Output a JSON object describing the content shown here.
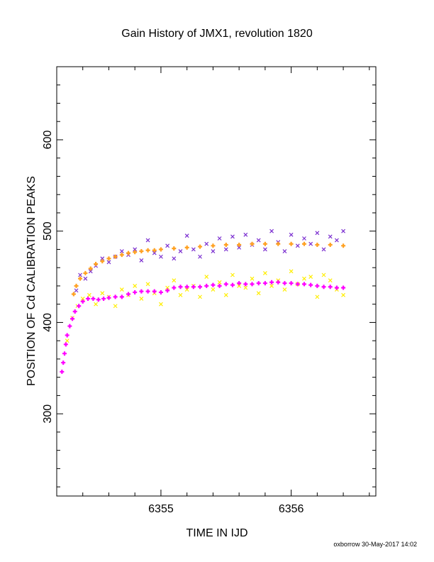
{
  "chart_data": {
    "type": "scatter",
    "title": "Gain History of JMX1, revolution 1820",
    "xlabel": "TIME IN IJD",
    "ylabel": "POSITION OF Cd CALIBRATION PEAKS",
    "xlim": [
      6354.2,
      6356.65
    ],
    "ylim": [
      210,
      680
    ],
    "xticks": [
      6355,
      6356
    ],
    "xtick_labels": [
      "6355",
      "6356"
    ],
    "yticks": [
      300,
      400,
      500,
      600
    ],
    "ytick_labels": [
      "300",
      "400",
      "500",
      "600"
    ],
    "grid": false,
    "series": [
      {
        "color": "#7b2fd0",
        "marker": "x",
        "x": [
          6354.35,
          6354.38,
          6354.42,
          6354.46,
          6354.5,
          6354.55,
          6354.6,
          6354.65,
          6354.7,
          6354.75,
          6354.8,
          6354.85,
          6354.9,
          6354.95,
          6355.0,
          6355.05,
          6355.1,
          6355.15,
          6355.2,
          6355.25,
          6355.3,
          6355.35,
          6355.4,
          6355.45,
          6355.5,
          6355.55,
          6355.6,
          6355.65,
          6355.7,
          6355.75,
          6355.8,
          6355.85,
          6355.9,
          6355.95,
          6356.0,
          6356.05,
          6356.1,
          6356.15,
          6356.2,
          6356.25,
          6356.3,
          6356.35,
          6356.4
        ],
        "y": [
          435,
          452,
          448,
          456,
          462,
          470,
          466,
          472,
          478,
          474,
          480,
          468,
          490,
          476,
          472,
          484,
          470,
          478,
          495,
          480,
          472,
          486,
          478,
          492,
          480,
          494,
          482,
          496,
          485,
          490,
          480,
          500,
          488,
          478,
          496,
          484,
          492,
          486,
          498,
          480,
          494,
          490,
          500
        ]
      },
      {
        "color": "#ffa020",
        "marker": "+",
        "x": [
          6354.33,
          6354.35,
          6354.38,
          6354.42,
          6354.46,
          6354.5,
          6354.55,
          6354.6,
          6354.65,
          6354.7,
          6354.75,
          6354.8,
          6354.85,
          6354.9,
          6354.95,
          6355.0,
          6355.1,
          6355.2,
          6355.3,
          6355.4,
          6355.5,
          6355.6,
          6355.7,
          6355.8,
          6355.9,
          6356.0,
          6356.1,
          6356.2,
          6356.3,
          6356.4
        ],
        "y": [
          431,
          440,
          448,
          454,
          459,
          464,
          467,
          470,
          472,
          474,
          476,
          477,
          478,
          479,
          479,
          480,
          481,
          482,
          483,
          484,
          485,
          485,
          486,
          486,
          486,
          486,
          486,
          485,
          485,
          484
        ]
      },
      {
        "color": "#ffee00",
        "marker": "x",
        "x": [
          6354.28,
          6354.32,
          6354.36,
          6354.4,
          6354.45,
          6354.5,
          6354.55,
          6354.6,
          6354.65,
          6354.7,
          6354.75,
          6354.8,
          6354.85,
          6354.9,
          6354.95,
          6355.0,
          6355.05,
          6355.1,
          6355.15,
          6355.2,
          6355.25,
          6355.3,
          6355.35,
          6355.4,
          6355.45,
          6355.5,
          6355.55,
          6355.6,
          6355.65,
          6355.7,
          6355.75,
          6355.8,
          6355.85,
          6355.9,
          6355.95,
          6356.0,
          6356.05,
          6356.1,
          6356.15,
          6356.2,
          6356.25,
          6356.3,
          6356.35,
          6356.4
        ],
        "y": [
          380,
          405,
          418,
          426,
          430,
          420,
          432,
          428,
          418,
          436,
          430,
          440,
          426,
          442,
          432,
          420,
          438,
          446,
          430,
          436,
          440,
          428,
          450,
          436,
          444,
          430,
          452,
          440,
          438,
          448,
          432,
          454,
          440,
          446,
          436,
          456,
          442,
          448,
          450,
          428,
          452,
          446,
          436,
          430
        ]
      },
      {
        "color": "#ff00ff",
        "marker": "+",
        "x": [
          6354.24,
          6354.25,
          6354.26,
          6354.27,
          6354.28,
          6354.3,
          6354.32,
          6354.34,
          6354.37,
          6354.4,
          6354.44,
          6354.48,
          6354.52,
          6354.56,
          6354.6,
          6354.65,
          6354.7,
          6354.75,
          6354.8,
          6354.85,
          6354.9,
          6354.95,
          6355.0,
          6355.05,
          6355.1,
          6355.15,
          6355.2,
          6355.25,
          6355.3,
          6355.35,
          6355.4,
          6355.45,
          6355.5,
          6355.55,
          6355.6,
          6355.65,
          6355.7,
          6355.75,
          6355.8,
          6355.85,
          6355.9,
          6355.95,
          6356.0,
          6356.05,
          6356.1,
          6356.15,
          6356.2,
          6356.25,
          6356.3,
          6356.35,
          6356.4
        ],
        "y": [
          346,
          356,
          366,
          376,
          386,
          396,
          404,
          412,
          418,
          423,
          426,
          426,
          425,
          426,
          427,
          428,
          428,
          431,
          433,
          434,
          434,
          434,
          433,
          435,
          438,
          439,
          439,
          439,
          439,
          440,
          441,
          440,
          442,
          441,
          443,
          442,
          442,
          443,
          443,
          444,
          444,
          443,
          443,
          442,
          442,
          441,
          440,
          439,
          439,
          438,
          438
        ]
      }
    ]
  },
  "footer": {
    "stamp": "oxborrow 30-May-2017 14:02"
  }
}
